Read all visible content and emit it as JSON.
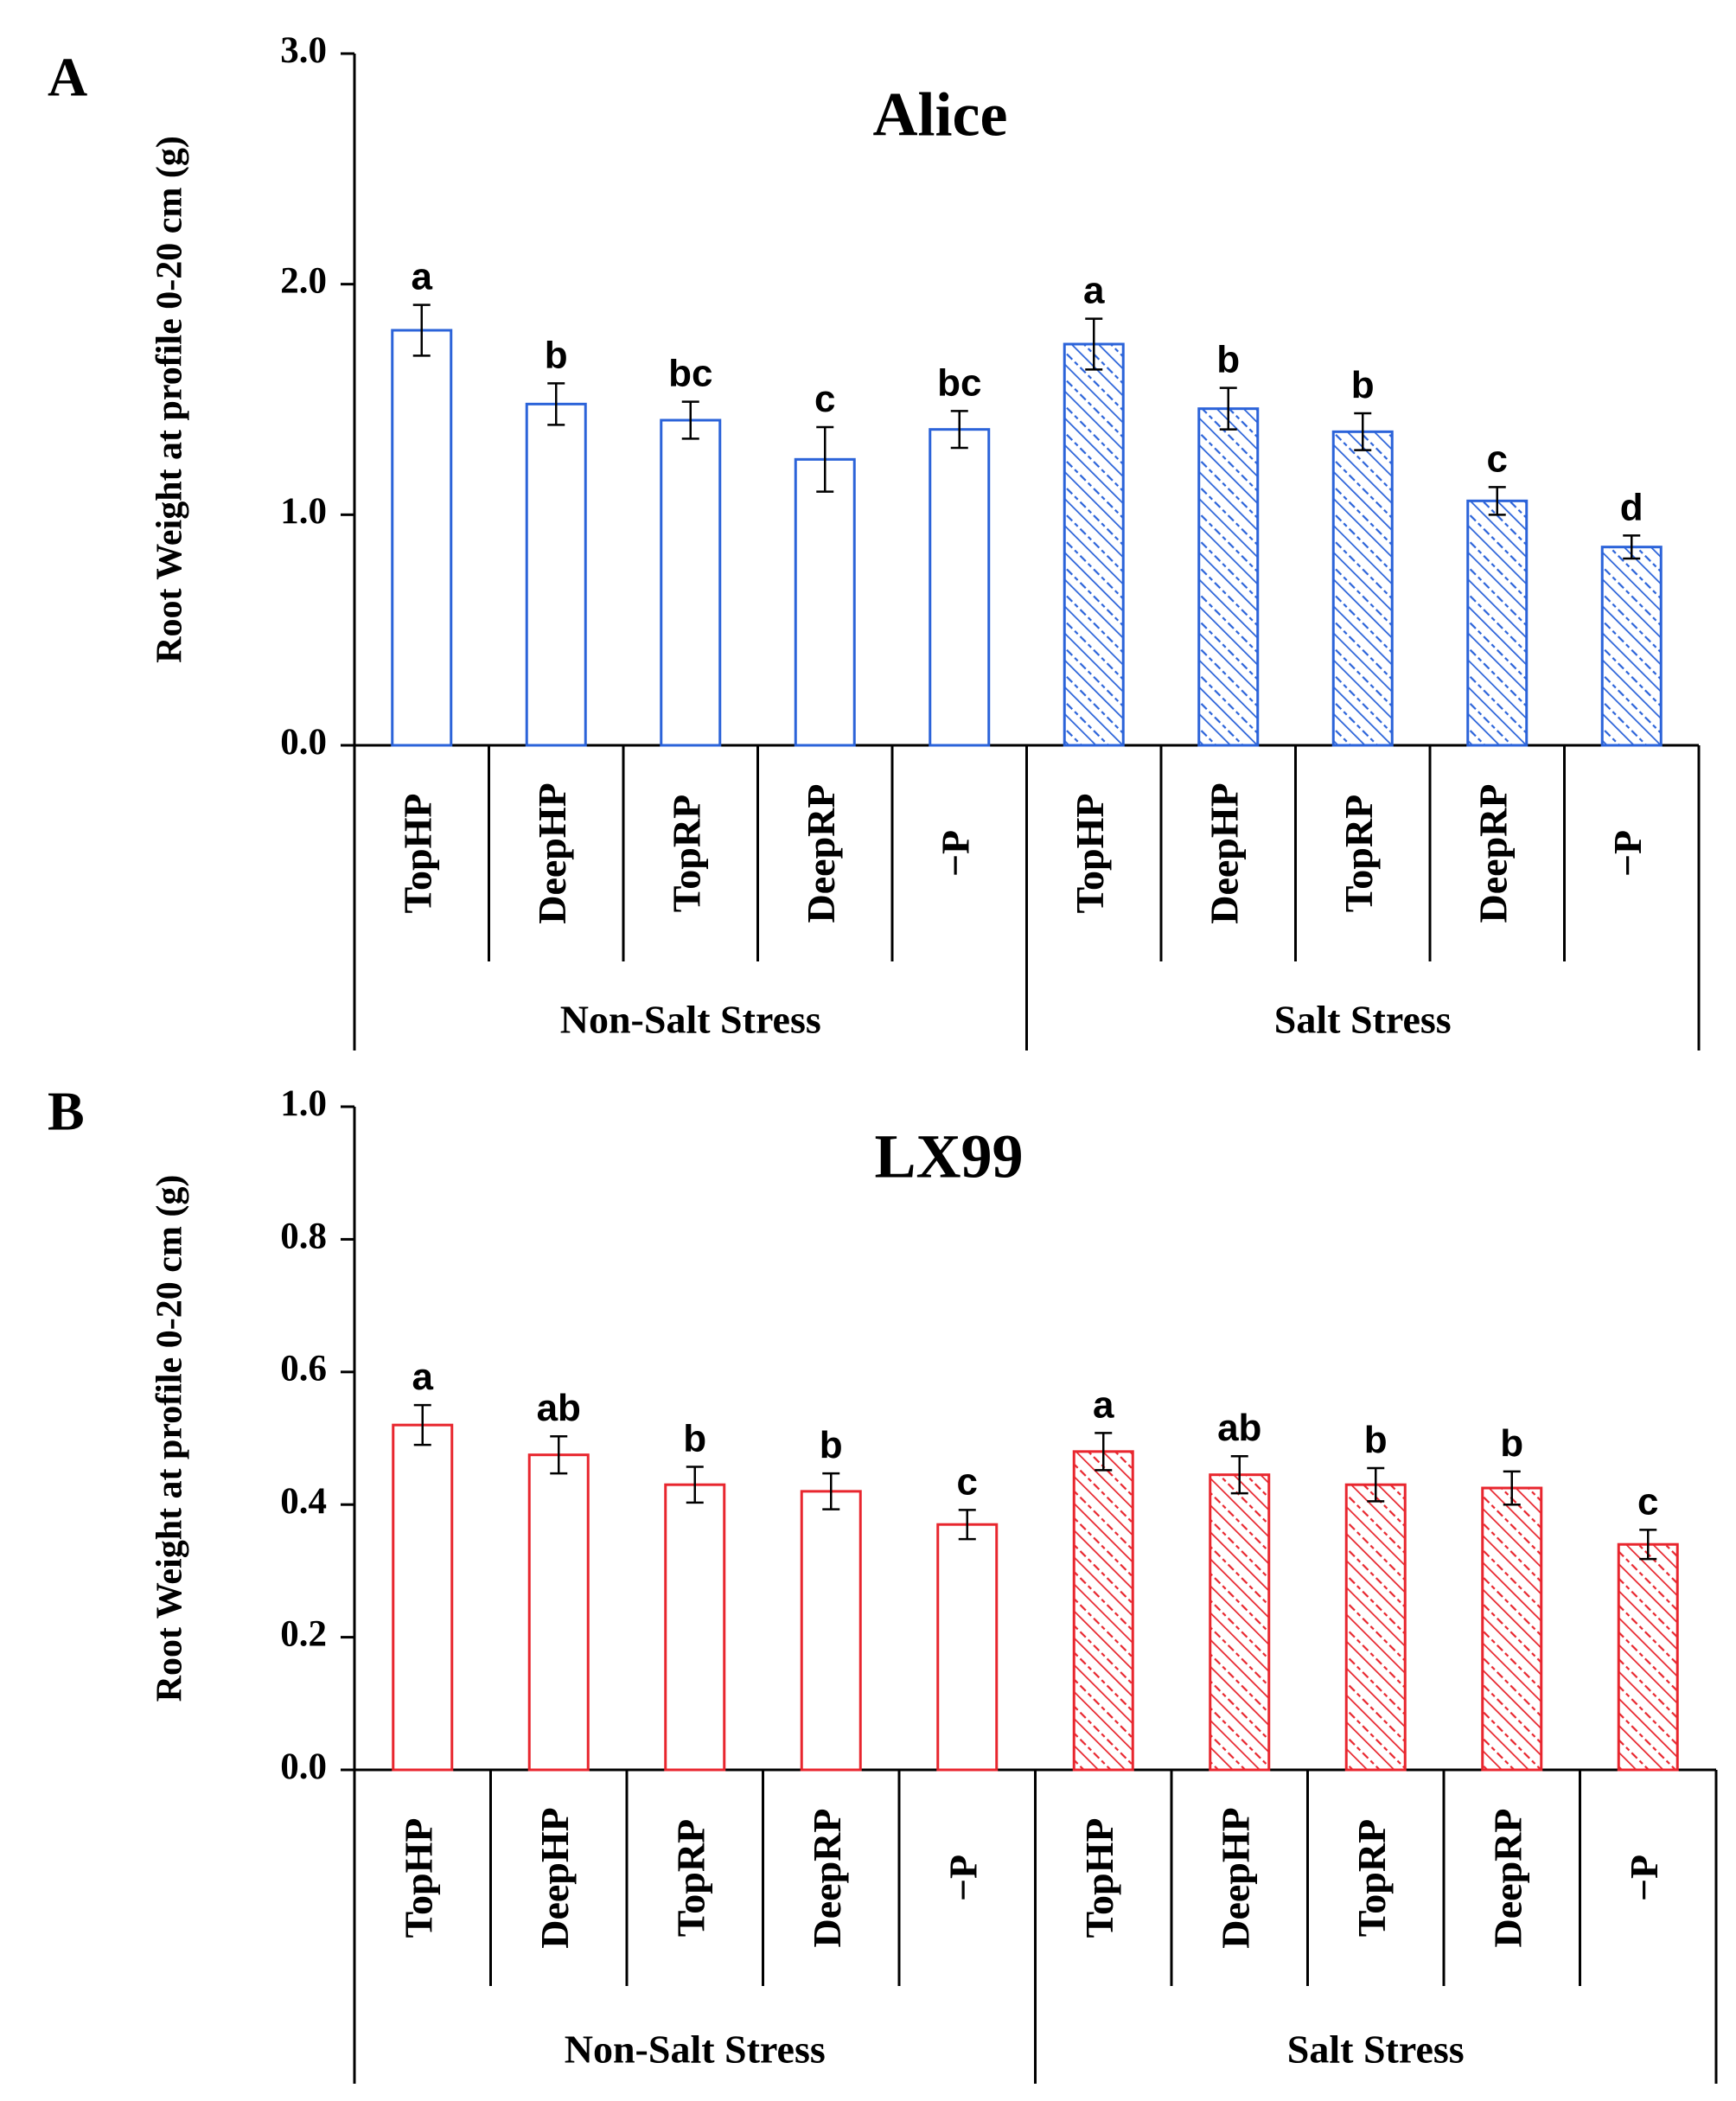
{
  "figure": {
    "panels": [
      {
        "letter": "A",
        "color": "#2b63d9",
        "chart_data": {
          "type": "bar",
          "title": "Alice",
          "ylabel": "Root Weight at profile 0-20 cm (g)",
          "xlabel": "",
          "ylim": [
            0,
            3.0
          ],
          "yticks": [
            "0.0",
            "1.0",
            "2.0",
            "3.0"
          ],
          "categories": [
            "TopHP",
            "DeepHP",
            "TopRP",
            "DeepRP",
            "−P",
            "TopHP",
            "DeepHP",
            "TopRP",
            "DeepRP",
            "−P"
          ],
          "groups": [
            {
              "label": "Non-Salt Stress",
              "from": 0,
              "to": 4,
              "fill": "none"
            },
            {
              "label": "Salt Stress",
              "from": 5,
              "to": 9,
              "fill": "hatched"
            }
          ],
          "values": [
            1.8,
            1.48,
            1.41,
            1.24,
            1.37,
            1.74,
            1.46,
            1.36,
            1.06,
            0.86
          ],
          "errors": [
            0.11,
            0.09,
            0.08,
            0.14,
            0.08,
            0.11,
            0.09,
            0.08,
            0.06,
            0.05
          ],
          "letters": [
            "a",
            "b",
            "bc",
            "c",
            "bc",
            "a",
            "b",
            "b",
            "c",
            "d"
          ],
          "grid": false,
          "legend": "none"
        }
      },
      {
        "letter": "B",
        "color": "#e8262e",
        "chart_data": {
          "type": "bar",
          "title": "LX99",
          "ylabel": "Root Weight at profile 0-20 cm (g)",
          "xlabel": "",
          "ylim": [
            0,
            1.0
          ],
          "yticks": [
            "0.0",
            "0.2",
            "0.4",
            "0.6",
            "0.8",
            "1.0"
          ],
          "categories": [
            "TopHP",
            "DeepHP",
            "TopRP",
            "DeepRP",
            "−P",
            "TopHP",
            "DeepHP",
            "TopRP",
            "DeepRP",
            "−P"
          ],
          "groups": [
            {
              "label": "Non-Salt Stress",
              "from": 0,
              "to": 4,
              "fill": "none"
            },
            {
              "label": "Salt Stress",
              "from": 5,
              "to": 9,
              "fill": "hatched"
            }
          ],
          "values": [
            0.52,
            0.475,
            0.43,
            0.42,
            0.37,
            0.48,
            0.445,
            0.43,
            0.425,
            0.34
          ],
          "errors": [
            0.03,
            0.028,
            0.027,
            0.027,
            0.022,
            0.028,
            0.028,
            0.025,
            0.025,
            0.022
          ],
          "letters": [
            "a",
            "ab",
            "b",
            "b",
            "c",
            "a",
            "ab",
            "b",
            "b",
            "c"
          ],
          "grid": false,
          "legend": "none"
        }
      }
    ]
  }
}
